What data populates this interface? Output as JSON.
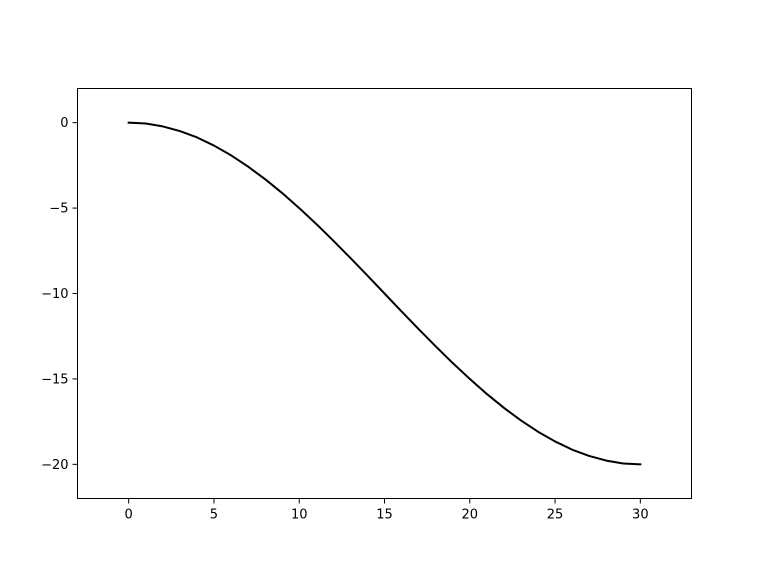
{
  "chart_data": {
    "type": "line",
    "title": "",
    "xlabel": "",
    "ylabel": "",
    "xlim": [
      -3,
      33
    ],
    "ylim": [
      -22,
      2
    ],
    "grid": false,
    "x_ticks": [
      0,
      5,
      10,
      15,
      20,
      25,
      30
    ],
    "x_tick_labels": [
      "0",
      "5",
      "10",
      "15",
      "20",
      "25",
      "30"
    ],
    "y_ticks": [
      0,
      -5,
      -10,
      -15,
      -20
    ],
    "y_tick_labels": [
      "0",
      "−5",
      "−10",
      "−15",
      "−20"
    ],
    "series": [
      {
        "color": "#000000",
        "x": [
          0,
          1,
          2,
          3,
          4,
          5,
          6,
          7,
          8,
          9,
          10,
          11,
          12,
          13,
          14,
          15,
          16,
          17,
          18,
          19,
          20,
          21,
          22,
          23,
          24,
          25,
          26,
          27,
          28,
          29,
          30
        ],
        "y": [
          0,
          -0.05,
          -0.22,
          -0.49,
          -0.86,
          -1.34,
          -1.91,
          -2.57,
          -3.31,
          -4.12,
          -5.0,
          -5.93,
          -6.91,
          -7.92,
          -8.95,
          -10.0,
          -11.05,
          -12.08,
          -13.09,
          -14.07,
          -15.0,
          -15.88,
          -16.69,
          -17.43,
          -18.09,
          -18.66,
          -19.14,
          -19.51,
          -19.78,
          -19.95,
          -20.0
        ]
      }
    ]
  }
}
